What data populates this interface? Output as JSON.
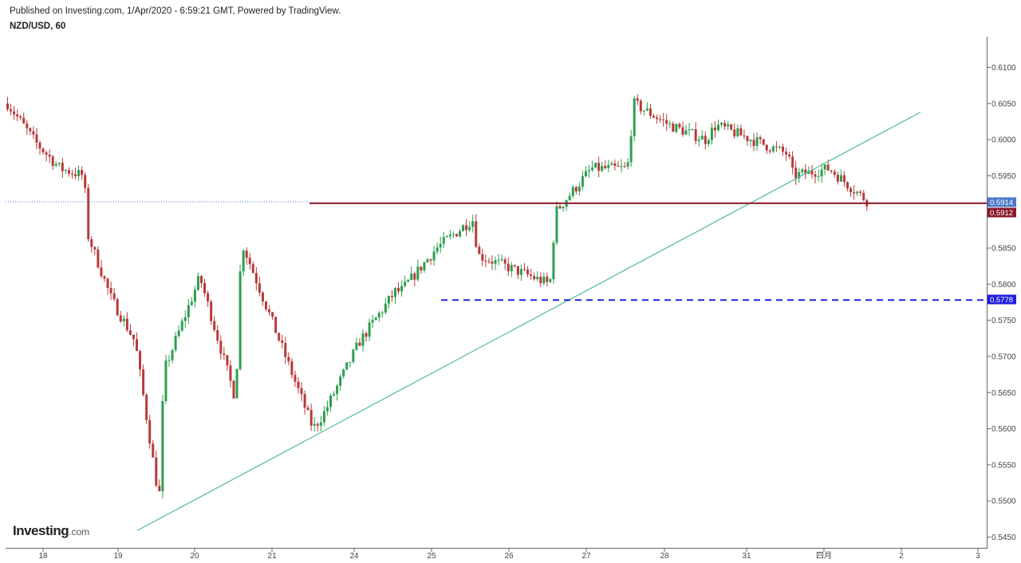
{
  "header": {
    "published": "Published on Investing.com, 1/Apr/2020 - 6:59:21 GMT, Powered by TradingView.",
    "symbol": "NZD/USD, 60"
  },
  "logo": {
    "brand": "Investing",
    "domain": ".com"
  },
  "colors": {
    "up": "#2e9e4f",
    "down": "#b83a3a",
    "trendline": "#5cc39a",
    "resistance": "#8b1a2b",
    "support_dash": "#2020e0",
    "dotted": "#4a79c9",
    "grid_axis": "#555555"
  },
  "chart_data": {
    "type": "candlestick",
    "title": "NZD/USD, 60",
    "ylim": [
      0.5437,
      0.6142
    ],
    "y_ticks": [
      "0.6100",
      "0.6050",
      "0.6000",
      "0.5950",
      "0.5900",
      "0.5850",
      "0.5800",
      "0.5750",
      "0.5700",
      "0.5650",
      "0.5600",
      "0.5550",
      "0.5500",
      "0.5450"
    ],
    "x_ticks": [
      "18",
      "19",
      "20",
      "21",
      "24",
      "25",
      "26",
      "27",
      "28",
      "31",
      "四月",
      "2",
      "3"
    ],
    "price_labels": [
      {
        "value": "0.5914",
        "color": "#4a79c9"
      },
      {
        "value": "0.5912",
        "color": "#8b1a2b"
      },
      {
        "value": "0.5778",
        "color": "#2020e0"
      }
    ],
    "lines": [
      {
        "name": "trendline",
        "from": {
          "x": "19",
          "y": 0.5459
        },
        "to": {
          "x": "2",
          "y": 0.6038
        }
      },
      {
        "name": "resistance",
        "y": 0.5912
      },
      {
        "name": "support-dashed",
        "y": 0.5778
      },
      {
        "name": "prior-close-dotted",
        "y": 0.5914
      }
    ],
    "close_path": [
      [
        "18",
        0.605
      ],
      [
        "18",
        0.5995
      ],
      [
        "18",
        0.596
      ],
      [
        "18",
        0.595
      ],
      [
        "19",
        0.587
      ],
      [
        "19",
        0.578
      ],
      [
        "19",
        0.572
      ],
      [
        "19",
        0.55
      ],
      [
        "20",
        0.568
      ],
      [
        "20",
        0.581
      ],
      [
        "20",
        0.564
      ],
      [
        "21",
        0.586
      ],
      [
        "21",
        0.573
      ],
      [
        "21",
        0.56
      ],
      [
        "24",
        0.562
      ],
      [
        "24",
        0.572
      ],
      [
        "24",
        0.579
      ],
      [
        "25",
        0.579
      ],
      [
        "25",
        0.585
      ],
      [
        "25",
        0.589
      ],
      [
        "26",
        0.584
      ],
      [
        "26",
        0.58
      ],
      [
        "27",
        0.59
      ],
      [
        "27",
        0.596
      ],
      [
        "27",
        0.596
      ],
      [
        "28",
        0.605
      ],
      [
        "28",
        0.602
      ],
      [
        "28",
        0.6
      ],
      [
        "31",
        0.602
      ],
      [
        "31",
        0.598
      ],
      [
        "四月",
        0.595
      ],
      [
        "四月",
        0.596
      ],
      [
        "四月",
        0.5912
      ]
    ]
  }
}
